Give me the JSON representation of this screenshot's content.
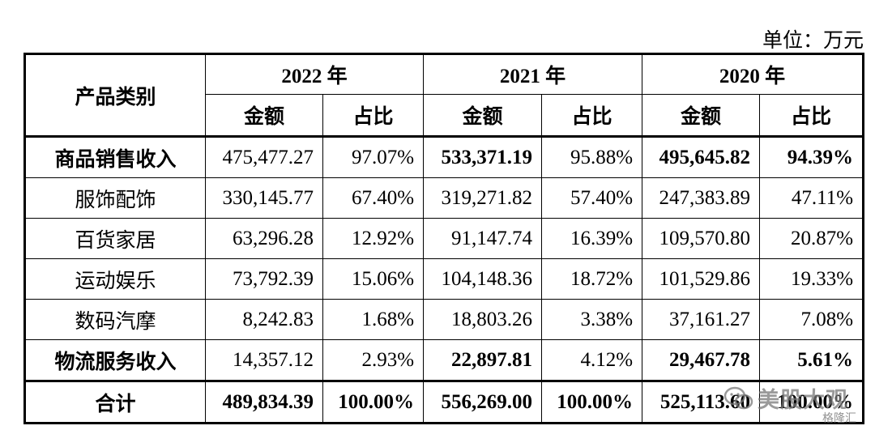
{
  "unit_label": "单位：万元",
  "table": {
    "category_header": "产品类别",
    "years": [
      "2022 年",
      "2021 年",
      "2020 年"
    ],
    "amount_label": "金额",
    "share_label": "占比",
    "rows": [
      {
        "category": "商品销售收入",
        "bold": true,
        "cells": [
          "475,477.27",
          "97.07%",
          "533,371.19",
          "95.88%",
          "495,645.82",
          "94.39%"
        ],
        "bold_cells": [
          false,
          false,
          true,
          false,
          true,
          true
        ]
      },
      {
        "category": "服饰配饰",
        "bold": false,
        "cells": [
          "330,145.77",
          "67.40%",
          "319,271.82",
          "57.40%",
          "247,383.89",
          "47.11%"
        ],
        "bold_cells": [
          false,
          false,
          false,
          false,
          false,
          false
        ]
      },
      {
        "category": "百货家居",
        "bold": false,
        "cells": [
          "63,296.28",
          "12.92%",
          "91,147.74",
          "16.39%",
          "109,570.80",
          "20.87%"
        ],
        "bold_cells": [
          false,
          false,
          false,
          false,
          false,
          false
        ]
      },
      {
        "category": "运动娱乐",
        "bold": false,
        "cells": [
          "73,792.39",
          "15.06%",
          "104,148.36",
          "18.72%",
          "101,529.86",
          "19.33%"
        ],
        "bold_cells": [
          false,
          false,
          false,
          false,
          false,
          false
        ]
      },
      {
        "category": "数码汽摩",
        "bold": false,
        "cells": [
          "8,242.83",
          "1.68%",
          "18,803.26",
          "3.38%",
          "37,161.27",
          "7.08%"
        ],
        "bold_cells": [
          false,
          false,
          false,
          false,
          false,
          false
        ]
      },
      {
        "category": "物流服务收入",
        "bold": true,
        "cells": [
          "14,357.12",
          "2.93%",
          "22,897.81",
          "4.12%",
          "29,467.78",
          "5.61%"
        ],
        "bold_cells": [
          false,
          false,
          true,
          false,
          true,
          true
        ]
      },
      {
        "category": "合计",
        "bold": true,
        "cells": [
          "489,834.39",
          "100.00%",
          "556,269.00",
          "100.00%",
          "525,113.60",
          "100.00%"
        ],
        "bold_cells": [
          true,
          true,
          true,
          true,
          true,
          true
        ]
      }
    ]
  },
  "watermark": {
    "text": "美股大观",
    "sub": "格隆汇"
  }
}
